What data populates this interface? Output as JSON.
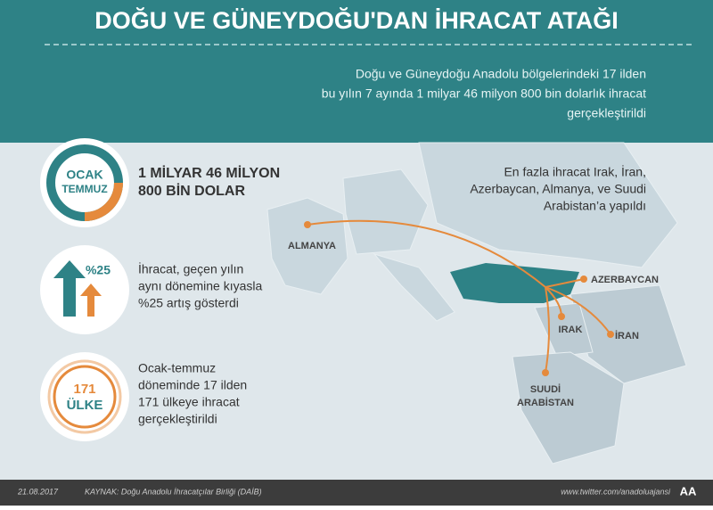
{
  "header": {
    "title": "DOĞU VE GÜNEYDOĞU'DAN İHRACAT ATAĞI",
    "intro": [
      "Doğu ve Güneydoğu Anadolu bölgelerindeki 17 ilden",
      "bu yılın 7 ayında 1 milyar 46 milyon 800 bin dolarlık ihracat",
      "gerçekleştirildi"
    ]
  },
  "stats": [
    {
      "icon": [
        "OCAK",
        "TEMMUZ"
      ],
      "text": [
        "1 MİLYAR 46 MİLYON",
        "800 BİN DOLAR"
      ]
    },
    {
      "icon": [
        "%25"
      ],
      "text": [
        "İhracat, geçen yılın",
        "aynı dönemine kıyasla",
        "%25 artış gösterdi"
      ]
    },
    {
      "icon": [
        "171",
        "ÜLKE"
      ],
      "text": [
        "Ocak-temmuz",
        "döneminde 17 ilden",
        "171 ülkeye ihracat",
        "gerçekleştirildi"
      ]
    }
  ],
  "map": {
    "note": [
      "En fazla ihracat Irak, İran,",
      "Azerbaycan, Almanya, ve Suudi",
      "Arabistan’a yapıldı"
    ],
    "labels": [
      "ALMANYA",
      "AZERBAYCAN",
      "IRAK",
      "İRAN",
      "SUUDİ",
      "ARABİSTAN"
    ]
  },
  "footer": {
    "date": "21.08.2017",
    "source": "KAYNAK: Doğu Anadolu İhracatçılar Birliği (DAİB)",
    "site": "www.twitter.com/anadoluajansi",
    "logo": "AA"
  }
}
